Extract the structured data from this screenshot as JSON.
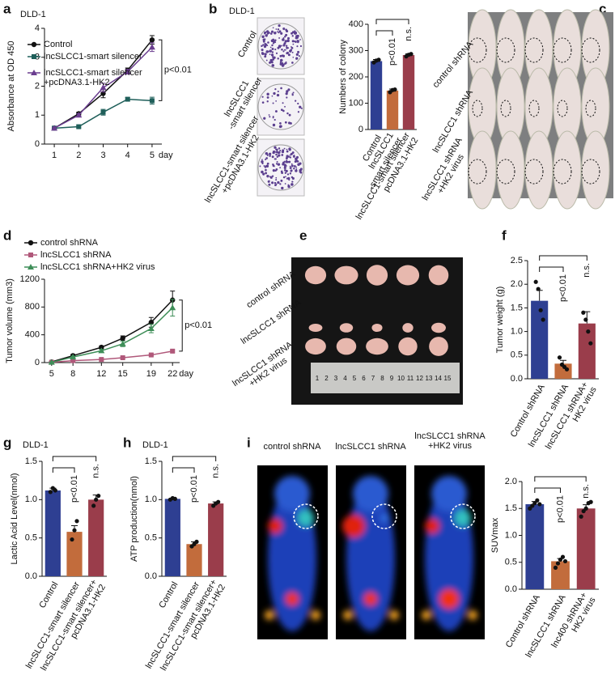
{
  "figure": {
    "panels": [
      "a",
      "b",
      "c",
      "d",
      "e",
      "f",
      "g",
      "h",
      "i"
    ],
    "b_title": "DLD-1",
    "b_plates": [
      "Control",
      "lncSLCC1\n-smart silencer",
      "lncSLCC1-smart silencer\n+pcDNA3.1-HK2"
    ],
    "c_groups": [
      "control shRNA",
      "lncSLCC1 shRNA",
      "lncSLCC1 shRNA\n+HK2 virus"
    ],
    "e_groups": [
      "control shRNA",
      "lncSLCC1 shRNA",
      "lncSLCC1 shRNA\n+HK2 virus"
    ],
    "e_ruler": [
      1,
      2,
      3,
      4,
      5,
      6,
      7,
      8,
      9,
      10,
      11,
      12,
      13,
      14,
      15
    ],
    "i_groups": [
      "control shRNA",
      "lncSLCC1 shRNA",
      "lncSLCC1 shRNA\n+HK2 virus"
    ]
  },
  "chart_data": [
    {
      "type": "line",
      "title": "DLD-1",
      "ylabel": "Absorbance at OD 450",
      "xlabel": "day",
      "x": [
        1,
        2,
        3,
        4,
        5
      ],
      "xlim": [
        0.6,
        5.4
      ],
      "xticks": [
        1,
        2,
        3,
        4,
        5
      ],
      "ylim": [
        0,
        4
      ],
      "yticks": [
        0,
        1,
        2,
        3,
        4
      ],
      "series": [
        {
          "name": "Control",
          "color": "#111111",
          "marker": "circle",
          "values": [
            0.55,
            1.05,
            1.75,
            2.55,
            3.6
          ],
          "errors": [
            0.03,
            0.05,
            0.15,
            0.08,
            0.15
          ]
        },
        {
          "name": "lncSLCC1-smart silencer",
          "color": "#1f5f5a",
          "marker": "square",
          "values": [
            0.55,
            0.6,
            1.1,
            1.55,
            1.5
          ],
          "errors": [
            0.03,
            0.04,
            0.1,
            0.06,
            0.12
          ]
        },
        {
          "name": "lncSLCC1-smart silencer\n+pcDNA3.1-HK2",
          "color": "#6a3d8f",
          "marker": "triangle",
          "values": [
            0.55,
            1.0,
            1.95,
            2.5,
            3.35
          ],
          "errors": [
            0.03,
            0.05,
            0.15,
            0.08,
            0.15
          ]
        }
      ],
      "annotations": [
        "p<0.01"
      ]
    },
    {
      "type": "bar",
      "ylabel": "Numbers of colony",
      "ylim": [
        0,
        400
      ],
      "yticks": [
        0,
        100,
        200,
        300,
        400
      ],
      "categories": [
        "Control",
        "lncSLCC1\n-smart silencer",
        "lncSLCC1-smart silencer\npcDNA3.1-HK2"
      ],
      "values": [
        260,
        148,
        283
      ],
      "errors": [
        6,
        6,
        5
      ],
      "points": [
        [
          255,
          262,
          265
        ],
        [
          142,
          150,
          152
        ],
        [
          278,
          284,
          287
        ]
      ],
      "colors": [
        "#2e3f92",
        "#c26c3c",
        "#9a3d4b"
      ],
      "annotations": [
        "p<0.01",
        "n.s."
      ]
    },
    {
      "type": "line",
      "ylabel": "Tumor volume (mm3)",
      "xlabel": "day",
      "x": [
        5,
        8,
        12,
        15,
        19,
        22
      ],
      "xlim": [
        4,
        23
      ],
      "xticks": [
        5,
        8,
        12,
        15,
        19,
        22
      ],
      "ylim": [
        0,
        1200
      ],
      "yticks": [
        0,
        400,
        800,
        1200
      ],
      "series": [
        {
          "name": "control shRNA",
          "color": "#111111",
          "marker": "circle",
          "values": [
            10,
            100,
            220,
            350,
            580,
            900
          ],
          "errors": [
            3,
            15,
            20,
            35,
            70,
            130
          ]
        },
        {
          "name": "lncSLCC1 shRNA",
          "color": "#b0587a",
          "marker": "square",
          "values": [
            5,
            28,
            45,
            70,
            110,
            165
          ],
          "errors": [
            2,
            5,
            8,
            10,
            12,
            15
          ]
        },
        {
          "name": "lncSLCC1 shRNA+HK2 virus",
          "color": "#3e8e58",
          "marker": "triangle",
          "values": [
            5,
            80,
            170,
            270,
            490,
            790
          ],
          "errors": [
            3,
            12,
            20,
            40,
            60,
            120
          ]
        }
      ],
      "annotations": [
        "p<0.01"
      ]
    },
    {
      "type": "bar",
      "ylabel": "Tumor weight (g)",
      "ylim": [
        0,
        2.5
      ],
      "yticks": [
        {
          "value": 0,
          "label": "0.0"
        },
        {
          "value": 0.5,
          "label": "0.5"
        },
        {
          "value": 1,
          "label": "1.0"
        },
        {
          "value": 1.5,
          "label": "1.5"
        },
        {
          "value": 2,
          "label": "2.0"
        },
        {
          "value": 2.5,
          "label": "2.5"
        }
      ],
      "categories": [
        "Control shRNA",
        "lncSLCC1 shRNA",
        "lncSLCC1 shRNA+\nHK2 virus"
      ],
      "values": [
        1.65,
        0.32,
        1.17
      ],
      "errors": [
        0.22,
        0.07,
        0.25
      ],
      "points": [
        [
          2.05,
          1.9,
          1.45,
          1.25
        ],
        [
          0.45,
          0.3,
          0.25,
          0.2
        ],
        [
          1.4,
          1.25,
          1.0,
          0.75
        ]
      ],
      "colors": [
        "#2e3f92",
        "#c26c3c",
        "#9a3d4b"
      ],
      "annotations": [
        "p<0.01",
        "n.s."
      ]
    },
    {
      "type": "bar",
      "title": "DLD-1",
      "ylabel": "Lactic Acid Level(nmol)",
      "ylim": [
        0,
        1.5
      ],
      "yticks": [
        {
          "value": 0,
          "label": "0.0"
        },
        {
          "value": 0.5,
          "label": "0.5"
        },
        {
          "value": 1,
          "label": "1.0"
        },
        {
          "value": 1.5,
          "label": "1.5"
        }
      ],
      "categories": [
        "Control",
        "lncSLCC1-smart silencer",
        "lncSLCC1-smart silencer+\npcDNA3.1-HK2"
      ],
      "values": [
        1.12,
        0.58,
        1.0
      ],
      "errors": [
        0.03,
        0.08,
        0.06
      ],
      "points": [
        [
          1.1,
          1.15,
          1.12
        ],
        [
          0.48,
          0.6,
          0.72
        ],
        [
          0.92,
          1.0,
          1.05
        ]
      ],
      "colors": [
        "#2e3f92",
        "#c26c3c",
        "#9a3d4b"
      ],
      "annotations": [
        "p<0.01",
        "n.s."
      ]
    },
    {
      "type": "bar",
      "title": "DLD-1",
      "ylabel": "ATP production(nmol)",
      "ylim": [
        0,
        1.5
      ],
      "yticks": [
        {
          "value": 0,
          "label": "0.0"
        },
        {
          "value": 0.5,
          "label": "0.5"
        },
        {
          "value": 1,
          "label": "1.0"
        },
        {
          "value": 1.5,
          "label": "1.5"
        }
      ],
      "categories": [
        "Control",
        "lncSLCC1-smart silencer",
        "lncSLCC1-smart silencer+\npcDNA3.1-HK2"
      ],
      "values": [
        1.01,
        0.42,
        0.95
      ],
      "errors": [
        0.01,
        0.03,
        0.02
      ],
      "points": [
        [
          1.0,
          1.02,
          1.01
        ],
        [
          0.39,
          0.42,
          0.45
        ],
        [
          0.92,
          0.95,
          0.97
        ]
      ],
      "colors": [
        "#2e3f92",
        "#c26c3c",
        "#9a3d4b"
      ],
      "annotations": [
        "p<0.01",
        "n.s."
      ]
    },
    {
      "type": "bar",
      "ylabel": "SUVmax",
      "ylim": [
        0,
        2
      ],
      "yticks": [
        {
          "value": 0,
          "label": "0.0"
        },
        {
          "value": 0.5,
          "label": "0.5"
        },
        {
          "value": 1,
          "label": "1.0"
        },
        {
          "value": 1.5,
          "label": "1.5"
        },
        {
          "value": 2,
          "label": "2.0"
        }
      ],
      "categories": [
        "Control shRNA",
        "lncSLCC1 shRNA",
        "lnc400 shRNA+\nHK2 virus"
      ],
      "values": [
        1.58,
        0.52,
        1.5
      ],
      "errors": [
        0.05,
        0.05,
        0.07
      ],
      "points": [
        [
          1.5,
          1.55,
          1.6,
          1.65,
          1.58
        ],
        [
          0.4,
          0.48,
          0.55,
          0.6,
          0.52
        ],
        [
          1.35,
          1.45,
          1.5,
          1.6,
          1.62
        ]
      ],
      "colors": [
        "#2e3f92",
        "#c26c3c",
        "#9a3d4b"
      ],
      "annotations": [
        "p<0.01",
        "n.s."
      ]
    }
  ]
}
